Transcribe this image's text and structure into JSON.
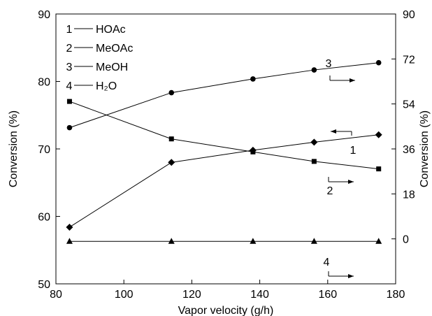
{
  "chart_data": {
    "type": "line",
    "xlabel": "Vapor velocity (g/h)",
    "ylabel_left": "Conversion (%)",
    "ylabel_right": "Conversion (%)",
    "xlim": [
      80,
      180
    ],
    "xticks": [
      80,
      100,
      120,
      140,
      160,
      180
    ],
    "ylim_left": [
      50,
      90
    ],
    "yticks_left": [
      50,
      60,
      70,
      80,
      90
    ],
    "ylim_right": [
      -18,
      90
    ],
    "yticks_right": [
      0,
      18,
      36,
      54,
      72,
      90
    ],
    "grid": false,
    "legend_position": "top-left",
    "x": [
      84,
      114,
      138,
      156,
      175
    ],
    "series": [
      {
        "name": "HOAc",
        "number": "1",
        "axis": "left",
        "marker": "diamond",
        "arrow": "left",
        "values": [
          58.4,
          68.0,
          69.8,
          71.0,
          72.1
        ]
      },
      {
        "name": "MeOAc",
        "number": "2",
        "axis": "right",
        "marker": "square",
        "arrow": "right",
        "values": [
          55.0,
          40.0,
          34.8,
          31.0,
          28.0
        ]
      },
      {
        "name": "MeOH",
        "number": "3",
        "axis": "right",
        "marker": "circle",
        "arrow": "right",
        "values": [
          44.5,
          58.5,
          64.0,
          67.6,
          70.5
        ]
      },
      {
        "name": "H₂O",
        "number": "4",
        "axis": "right",
        "marker": "triangle",
        "arrow": "right",
        "values": [
          -1.0,
          -1.0,
          -1.0,
          -1.0,
          -1.0
        ]
      }
    ]
  }
}
